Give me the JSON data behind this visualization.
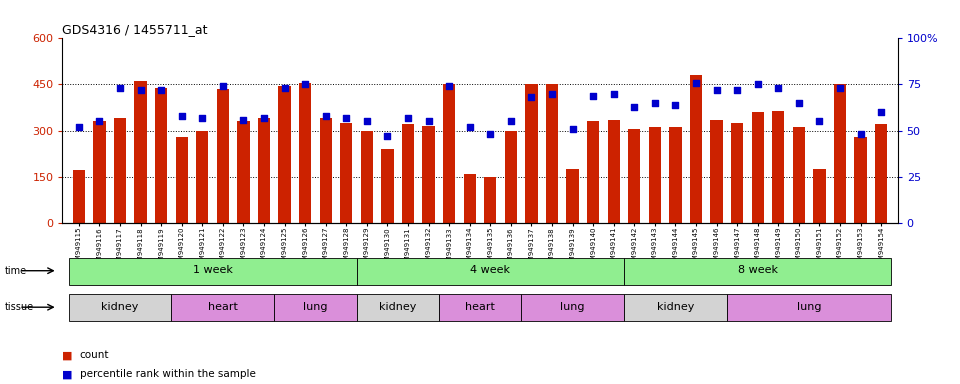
{
  "title": "GDS4316 / 1455711_at",
  "samples": [
    "GSM949115",
    "GSM949116",
    "GSM949117",
    "GSM949118",
    "GSM949119",
    "GSM949120",
    "GSM949121",
    "GSM949122",
    "GSM949123",
    "GSM949124",
    "GSM949125",
    "GSM949126",
    "GSM949127",
    "GSM949128",
    "GSM949129",
    "GSM949130",
    "GSM949131",
    "GSM949132",
    "GSM949133",
    "GSM949134",
    "GSM949135",
    "GSM949136",
    "GSM949137",
    "GSM949138",
    "GSM949139",
    "GSM949140",
    "GSM949141",
    "GSM949142",
    "GSM949143",
    "GSM949144",
    "GSM949145",
    "GSM949146",
    "GSM949147",
    "GSM949148",
    "GSM949149",
    "GSM949150",
    "GSM949151",
    "GSM949152",
    "GSM949153",
    "GSM949154"
  ],
  "counts": [
    170,
    330,
    340,
    460,
    440,
    280,
    300,
    435,
    330,
    340,
    445,
    455,
    340,
    325,
    300,
    240,
    320,
    315,
    450,
    160,
    150,
    300,
    450,
    450,
    175,
    330,
    335,
    305,
    310,
    310,
    480,
    335,
    325,
    360,
    365,
    310,
    175,
    450,
    280,
    320
  ],
  "percentiles": [
    52,
    55,
    73,
    72,
    72,
    58,
    57,
    74,
    56,
    57,
    73,
    75,
    58,
    57,
    55,
    47,
    57,
    55,
    74,
    52,
    48,
    55,
    68,
    70,
    51,
    69,
    70,
    63,
    65,
    64,
    76,
    72,
    72,
    75,
    73,
    65,
    55,
    73,
    48,
    60
  ],
  "bar_color": "#cc2200",
  "dot_color": "#0000cc",
  "ylim_left": [
    0,
    600
  ],
  "ylim_right": [
    0,
    100
  ],
  "yticks_left": [
    0,
    150,
    300,
    450,
    600
  ],
  "yticks_right": [
    0,
    25,
    50,
    75,
    100
  ],
  "time_row_color": "#90ee90",
  "tissue_kidney_color": "#d3d3d3",
  "tissue_other_color": "#da8fda",
  "legend_count_color": "#cc2200",
  "legend_pct_color": "#0000cc",
  "bg_color": "#ffffff",
  "plot_bg_color": "#ffffff",
  "grid_color": "#000000",
  "time_groups": [
    {
      "label": "1 week",
      "start": 0,
      "end": 14
    },
    {
      "label": "4 week",
      "start": 14,
      "end": 27
    },
    {
      "label": "8 week",
      "start": 27,
      "end": 40
    }
  ],
  "tissue_groups": [
    {
      "label": "kidney",
      "start": 0,
      "end": 5,
      "is_kidney": true
    },
    {
      "label": "heart",
      "start": 5,
      "end": 10,
      "is_kidney": false
    },
    {
      "label": "lung",
      "start": 10,
      "end": 14,
      "is_kidney": false
    },
    {
      "label": "kidney",
      "start": 14,
      "end": 18,
      "is_kidney": true
    },
    {
      "label": "heart",
      "start": 18,
      "end": 22,
      "is_kidney": false
    },
    {
      "label": "lung",
      "start": 22,
      "end": 27,
      "is_kidney": false
    },
    {
      "label": "kidney",
      "start": 27,
      "end": 32,
      "is_kidney": true
    },
    {
      "label": "lung",
      "start": 32,
      "end": 40,
      "is_kidney": false
    }
  ]
}
